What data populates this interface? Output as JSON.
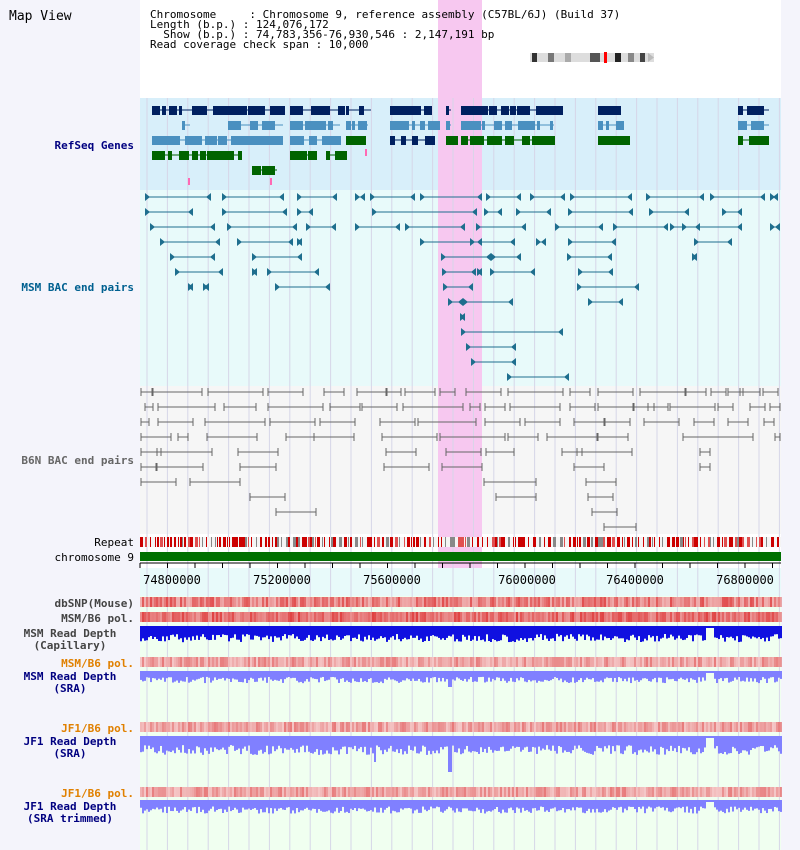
{
  "app": {
    "title": "Map View"
  },
  "info": {
    "line1": "Chromosome     : Chromosome 9, reference assembly (C57BL/6J) (Build 37)",
    "line2": "Length (b.p.) : 124,076,172",
    "line3": "  Show (b.p.) : 74,783,356-76,930,546 : 2,147,191 bp",
    "line4": "Read coverage check span : 10,000"
  },
  "tracks": {
    "refseq": "RefSeq Genes",
    "msm_bac": "MSM BAC end pairs",
    "b6n_bac": "B6N BAC end pairs",
    "repeat": "Repeat",
    "chromosome": "chromosome 9",
    "dbsnp": "dbSNP(Mouse)",
    "msm_b6_pol": "MSM/B6 pol.",
    "msm_read_depth_cap_1": "MSM Read Depth",
    "msm_read_depth_cap_2": "(Capillary)",
    "msm_b6_pol_sra": "MSM/B6 pol.",
    "msm_read_depth_sra_1": "MSM Read Depth",
    "msm_read_depth_sra_2": "(SRA)",
    "jf1_b6_pol_1": "JF1/B6 pol.",
    "jf1_read_depth_sra_1": "JF1 Read Depth",
    "jf1_read_depth_sra_2": "(SRA)",
    "jf1_b6_pol_2": "JF1/B6 pol.",
    "jf1_read_depth_trim_1": "JF1 Read Depth",
    "jf1_read_depth_trim_2": "(SRA trimmed)"
  },
  "axis": {
    "ticks": [
      "74800000",
      "75200000",
      "75600000",
      "76000000",
      "76400000",
      "76800000"
    ]
  },
  "colors": {
    "refseq_dark": "#002060",
    "refseq_light": "#4a90c0",
    "refseq_green": "#006400",
    "msm_bac": "#1e6e8e",
    "b6n_bac": "#666666",
    "highlight": "#f7c8f0",
    "chromosome": "#007000",
    "label_blue": "#000080",
    "label_teal": "#006090",
    "label_orange": "#e08000",
    "depth_cap": "#1010e0",
    "depth_sra": "#8080ff"
  }
}
